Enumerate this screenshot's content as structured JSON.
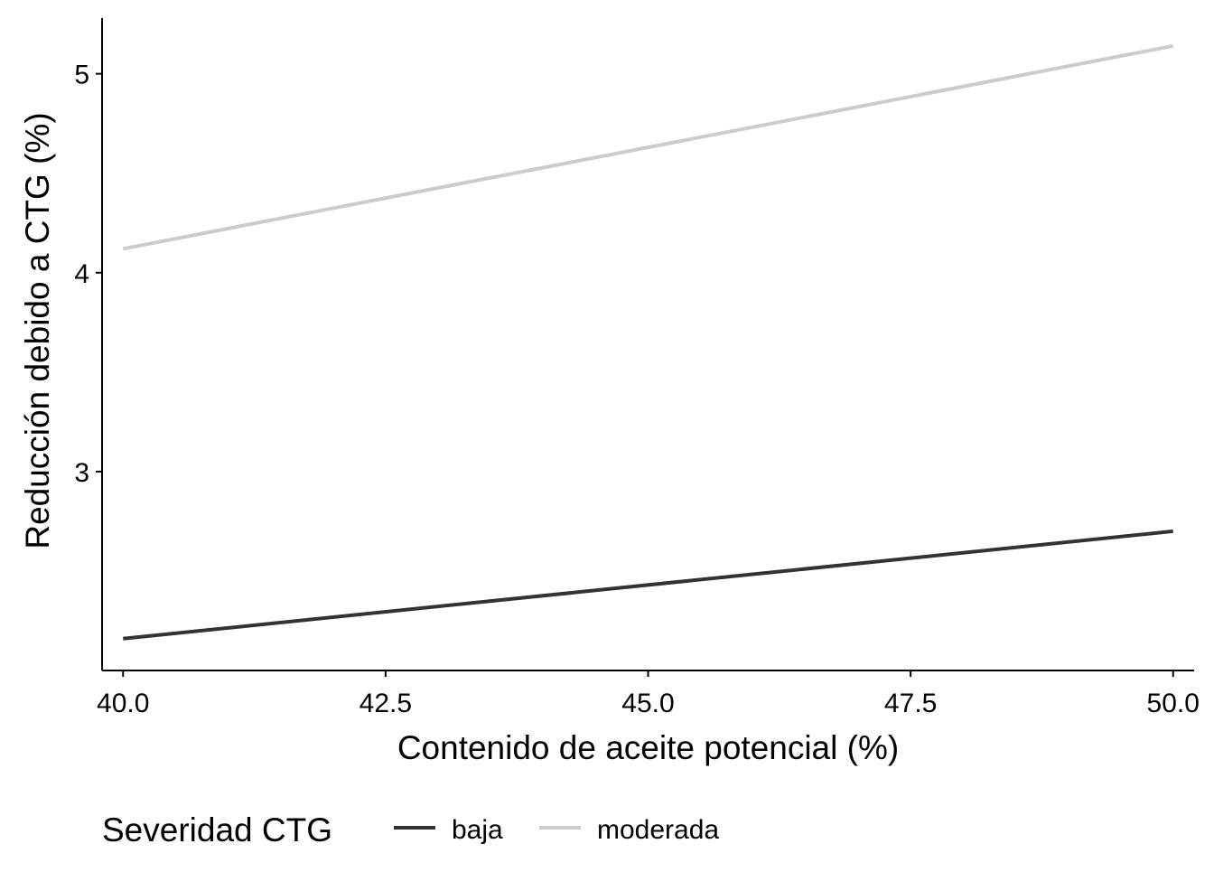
{
  "chart_data": {
    "type": "line",
    "title": "",
    "xlabel": "Contenido de aceite potencial (%)",
    "ylabel": "Reducción debido a CTG (%)",
    "xlim": [
      39.8,
      50.2
    ],
    "ylim": [
      2.0,
      5.28
    ],
    "x_ticks": [
      40.0,
      42.5,
      45.0,
      47.5,
      50.0
    ],
    "x_tick_labels": [
      "40.0",
      "42.5",
      "45.0",
      "47.5",
      "50.0"
    ],
    "y_ticks": [
      3,
      4,
      5
    ],
    "y_tick_labels": [
      "3",
      "4",
      "5"
    ],
    "grid": false,
    "legend": {
      "title": "Severidad CTG",
      "position": "bottom"
    },
    "series": [
      {
        "name": "baja",
        "color": "#333333",
        "x": [
          40.0,
          50.0
        ],
        "y": [
          2.16,
          2.7
        ]
      },
      {
        "name": "moderada",
        "color": "#cccccc",
        "x": [
          40.0,
          50.0
        ],
        "y": [
          4.12,
          5.14
        ]
      }
    ]
  }
}
